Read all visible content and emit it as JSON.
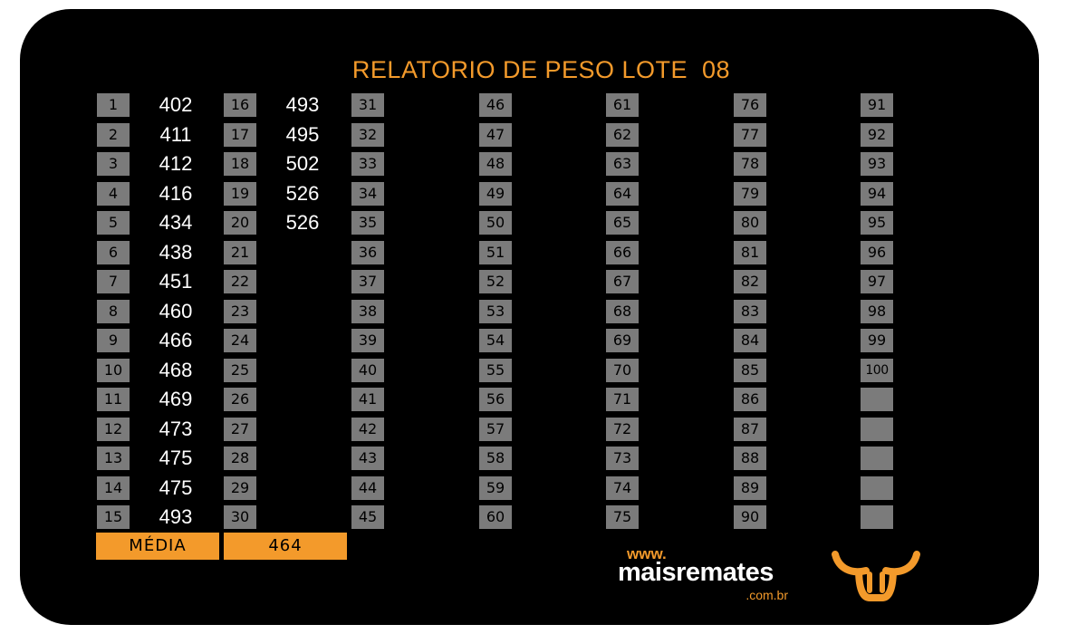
{
  "title": "RELATORIO DE PESO LOTE  08",
  "weights": [
    402,
    411,
    412,
    416,
    434,
    438,
    451,
    460,
    466,
    468,
    469,
    473,
    475,
    475,
    493,
    493,
    495,
    502,
    526,
    526
  ],
  "total_slots": 100,
  "blank_slots_col7": 5,
  "summary": {
    "label": "MÉDIA",
    "value": "464"
  },
  "logo": {
    "www": "www.",
    "name": "maisremates",
    "domain": ".com.br"
  },
  "colors": {
    "accent": "#f39a2b",
    "card": "#000000",
    "cell": "#7b7b7b",
    "text": "#ffffff"
  }
}
